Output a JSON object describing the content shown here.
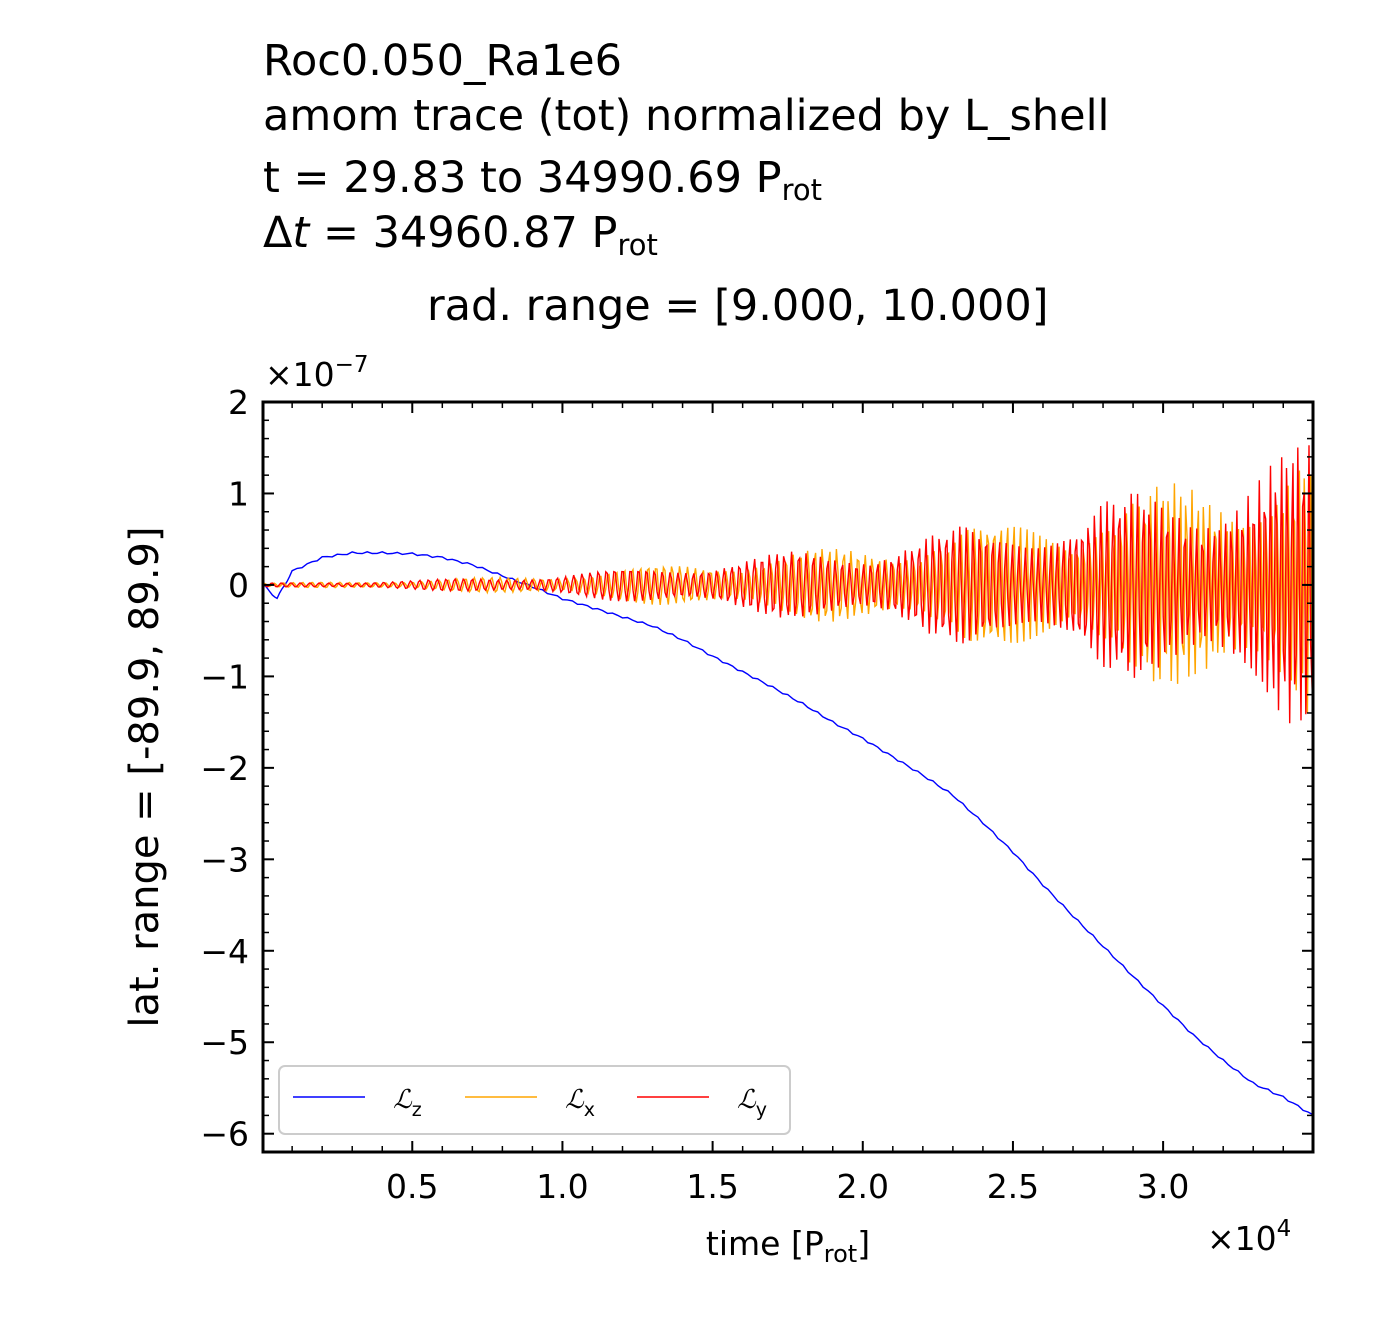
{
  "header": {
    "line1": "Roc0.050_Ra1e6",
    "line2": "amom trace (tot) normalized by L_shell",
    "line3_text": "t = 29.83 to 34990.69 P",
    "line3_sub": "rot",
    "line4_delta": "Δ",
    "line4_t": "t",
    "line4_text": " = 34960.87 P",
    "line4_sub": "rot",
    "subtitle": "rad. range = [9.000, 10.000]"
  },
  "chart_data": {
    "type": "line",
    "xlabel_main": "time [P",
    "xlabel_sub": "rot",
    "xlabel_end": "]",
    "ylabel": "lat. range = [-89.9, 89.9]",
    "x_offset_base": "×10",
    "x_offset_exp": "4",
    "y_offset_base": "×10",
    "y_offset_exp": "−7",
    "xlim": [
      29.83,
      34990.69
    ],
    "ylim": [
      -6.2,
      2.0
    ],
    "x_scale": 10000,
    "y_scale": 1e-07,
    "xticks": [
      0.5,
      1.0,
      1.5,
      2.0,
      2.5,
      3.0
    ],
    "xtick_labels": [
      "0.5",
      "1.0",
      "1.5",
      "2.0",
      "2.5",
      "3.0"
    ],
    "yticks": [
      2,
      1,
      0,
      -1,
      -2,
      -3,
      -4,
      -5,
      -6
    ],
    "ytick_labels": [
      "2",
      "1",
      "0",
      "−1",
      "−2",
      "−3",
      "−4",
      "−5",
      "−6"
    ],
    "legend_position": "lower-left",
    "grid": false,
    "series": [
      {
        "name_main": "ℒ",
        "name_sub": "z",
        "color": "#0000ff",
        "x": [
          29.83,
          500,
          1000,
          2000,
          3000,
          4000,
          5000,
          6000,
          7000,
          8000,
          9000,
          10000,
          11000,
          12000,
          13000,
          14000,
          15000,
          16000,
          17000,
          18000,
          19000,
          20000,
          21000,
          22000,
          23000,
          24000,
          25000,
          26000,
          27000,
          28000,
          29000,
          30000,
          31000,
          32000,
          33000,
          34000,
          34990.69
        ],
        "y": [
          0.0,
          -0.15,
          0.15,
          0.3,
          0.35,
          0.35,
          0.34,
          0.3,
          0.22,
          0.1,
          -0.02,
          -0.15,
          -0.25,
          -0.35,
          -0.45,
          -0.6,
          -0.78,
          -0.95,
          -1.12,
          -1.3,
          -1.5,
          -1.68,
          -1.88,
          -2.08,
          -2.3,
          -2.6,
          -2.92,
          -3.28,
          -3.62,
          -3.95,
          -4.28,
          -4.6,
          -4.92,
          -5.2,
          -5.45,
          -5.6,
          -5.8
        ]
      },
      {
        "name_main": "ℒ",
        "name_sub": "x",
        "color": "#ffa500",
        "amplitude_t": [
          29.83,
          5000,
          10000,
          15000,
          20000,
          25000,
          30000,
          34990.69
        ],
        "amplitude": [
          0.02,
          0.05,
          0.12,
          0.28,
          0.45,
          0.75,
          1.1,
          1.6
        ],
        "period": 320
      },
      {
        "name_main": "ℒ",
        "name_sub": "y",
        "color": "#ff0000",
        "amplitude_t": [
          29.83,
          5000,
          10000,
          15000,
          20000,
          25000,
          30000,
          34990.69
        ],
        "amplitude": [
          0.02,
          0.05,
          0.12,
          0.28,
          0.45,
          0.75,
          1.1,
          1.6
        ],
        "period": 320
      }
    ]
  }
}
